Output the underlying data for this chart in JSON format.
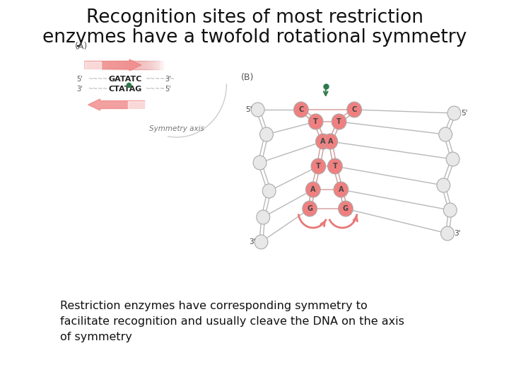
{
  "title_line1": "Recognition sites of most restriction",
  "title_line2": "enzymes have a twofold rotational symmetry",
  "title_fontsize": 19,
  "title_color": "#111111",
  "background_color": "#ffffff",
  "body_text": "Restriction enzymes have corresponding symmetry to\nfacilitate recognition and usually cleave the DNA on the axis\nof symmetry",
  "body_fontsize": 11.5,
  "label_A": "(A)",
  "label_B": "(B)",
  "seq_top": "GATATC",
  "seq_bot": "CTATAG",
  "sym_axis_label": "Symmetry axis",
  "pink_color": "#f08080",
  "pink_light": "#f9c0c0",
  "green_color": "#2d7a4a",
  "white_node": "#f0f0f0",
  "white_node2": "#e8e8e8",
  "node_edge": "#aaaaaa",
  "arrow_pink": "#e87878",
  "gray_line": "#b8b8b8"
}
